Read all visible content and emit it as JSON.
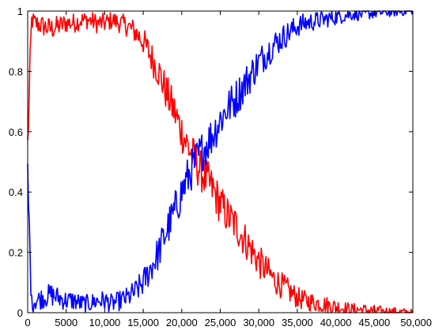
{
  "chart_data": {
    "type": "line",
    "title": "",
    "xlabel": "",
    "ylabel": "",
    "xlim": [
      0,
      50000
    ],
    "ylim": [
      0,
      1
    ],
    "grid": false,
    "x_ticks": [
      0,
      5000,
      10000,
      15000,
      20000,
      25000,
      30000,
      35000,
      40000,
      45000,
      50000
    ],
    "x_tick_labels": [
      "0",
      "5000",
      "10,000",
      "15,000",
      "20,000",
      "25,000",
      "30,000",
      "35,000",
      "40,000",
      "45,000",
      "50,000"
    ],
    "y_ticks": [
      0,
      0.2,
      0.4,
      0.6,
      0.8,
      1
    ],
    "y_tick_labels": [
      "0",
      "0.2",
      "0.4",
      "0.6",
      "0.8",
      "1"
    ],
    "series": [
      {
        "color": "#ff0000",
        "x": [
          0,
          500,
          1000,
          2000,
          3000,
          4000,
          5000,
          6000,
          7000,
          8000,
          9000,
          10000,
          11000,
          12000,
          13000,
          14000,
          15000,
          16000,
          17000,
          18000,
          19000,
          20000,
          21000,
          22000,
          23000,
          24000,
          25000,
          26000,
          27000,
          28000,
          29000,
          30000,
          31000,
          32000,
          33000,
          34000,
          35000,
          36000,
          37000,
          38000,
          39000,
          40000,
          41000,
          42000,
          43000,
          44000,
          45000,
          46000,
          47000,
          48000,
          49000,
          50000
        ],
        "y": [
          0.55,
          0.97,
          0.96,
          0.95,
          0.94,
          0.95,
          0.96,
          0.96,
          0.97,
          0.97,
          0.96,
          0.96,
          0.97,
          0.96,
          0.95,
          0.93,
          0.9,
          0.85,
          0.8,
          0.73,
          0.67,
          0.6,
          0.54,
          0.49,
          0.45,
          0.41,
          0.36,
          0.32,
          0.29,
          0.25,
          0.21,
          0.17,
          0.14,
          0.11,
          0.09,
          0.07,
          0.05,
          0.04,
          0.035,
          0.03,
          0.025,
          0.02,
          0.015,
          0.01,
          0.01,
          0.008,
          0.006,
          0.004,
          0.003,
          0.002,
          0.001,
          0.0
        ]
      },
      {
        "color": "#0000ff",
        "x": [
          0,
          500,
          1000,
          2000,
          3000,
          4000,
          5000,
          6000,
          7000,
          8000,
          9000,
          10000,
          11000,
          12000,
          13000,
          14000,
          15000,
          16000,
          17000,
          18000,
          19000,
          20000,
          21000,
          22000,
          23000,
          24000,
          25000,
          26000,
          27000,
          28000,
          29000,
          30000,
          31000,
          32000,
          33000,
          34000,
          35000,
          36000,
          37000,
          38000,
          39000,
          40000,
          41000,
          42000,
          43000,
          44000,
          45000,
          46000,
          47000,
          48000,
          49000,
          50000
        ],
        "y": [
          0.45,
          0.03,
          0.04,
          0.05,
          0.06,
          0.05,
          0.04,
          0.04,
          0.03,
          0.03,
          0.04,
          0.04,
          0.03,
          0.04,
          0.05,
          0.07,
          0.1,
          0.15,
          0.2,
          0.27,
          0.33,
          0.4,
          0.46,
          0.51,
          0.55,
          0.59,
          0.64,
          0.68,
          0.71,
          0.75,
          0.79,
          0.83,
          0.86,
          0.89,
          0.91,
          0.93,
          0.95,
          0.96,
          0.965,
          0.97,
          0.975,
          0.98,
          0.985,
          0.99,
          0.99,
          0.992,
          0.994,
          0.996,
          0.997,
          0.998,
          0.999,
          1.0
        ]
      }
    ]
  }
}
